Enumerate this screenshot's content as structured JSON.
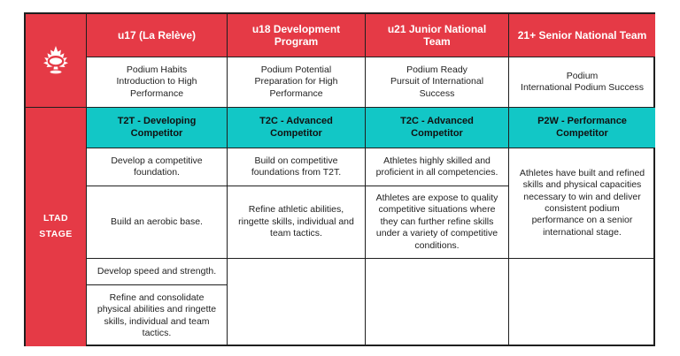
{
  "brand": {
    "red": "#e53a46",
    "teal": "#12c7c6",
    "logo_icon": "maple-leaf-ring-logo"
  },
  "table": {
    "headers": [
      "u17 (La Relève)",
      "u18 Development\nProgram",
      "u21 Junior National\nTeam",
      "21+ Senior National Team"
    ],
    "goals": [
      "Podium Habits\nIntroduction to High\nPerformance",
      "Podium Potential\nPreparation for High\nPerformance",
      "Podium Ready\nPursuit of International\nSuccess",
      "Podium\nInternational Podium Success"
    ],
    "ltad_label": "LTAD\nSTAGE",
    "stages": [
      "T2T - Developing\nCompetitor",
      "T2C - Advanced\nCompetitor",
      "T2C - Advanced\nCompetitor",
      "P2W - Performance\nCompetitor"
    ],
    "col1": [
      "Develop a competitive\nfoundation.",
      "Build an aerobic base.",
      "Develop speed and strength.",
      "Refine and consolidate\nphysical abilities and ringette\nskills, individual and team\ntactics."
    ],
    "col2": [
      "Build on competitive\nfoundations from T2T.",
      "Refine athletic abilities,\nringette skills, individual and\nteam tactics."
    ],
    "col3": [
      "Athletes highly skilled and\nproficient in all competencies.",
      "Athletes are expose to quality\ncompetitive situations where\nthey can further refine skills\nunder a variety of competitive\nconditions."
    ],
    "col4": [
      "Athletes have built and refined\nskills and physical capacities\nnecessary to win and deliver\nconsistent podium\nperformance on a senior\ninternational stage."
    ]
  }
}
